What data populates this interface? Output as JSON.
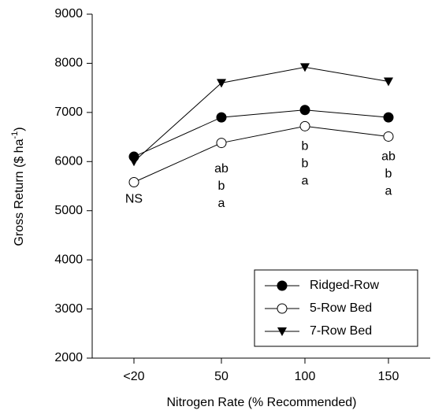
{
  "chart_data": {
    "type": "line",
    "x_label": "Nitrogen Rate (% Recommended)",
    "y_label": {
      "text": "Gross Return ($ ha",
      "sup": "-1",
      "end": ")"
    },
    "categories": [
      "<20",
      "50",
      "100",
      "150"
    ],
    "series": [
      {
        "name": "Ridged-Row",
        "color": "#000000",
        "marker": "circle-filled",
        "values": [
          6100,
          6900,
          7050,
          6900
        ]
      },
      {
        "name": "5-Row Bed",
        "color": "#000000",
        "marker": "circle-open",
        "values": [
          5580,
          6380,
          6720,
          6510
        ]
      },
      {
        "name": "7-Row Bed",
        "color": "#000000",
        "marker": "triangle-down",
        "values": [
          6000,
          7600,
          7920,
          7630
        ]
      }
    ],
    "letters": [
      [
        "NS"
      ],
      [
        "ab",
        "b",
        "a"
      ],
      [
        "b",
        "b",
        "a"
      ],
      [
        "ab",
        "b",
        "a"
      ]
    ],
    "ylim": [
      2000,
      9000
    ],
    "yticks": [
      2000,
      3000,
      4000,
      5000,
      6000,
      7000,
      8000,
      9000
    ],
    "legend": "lower-right"
  }
}
